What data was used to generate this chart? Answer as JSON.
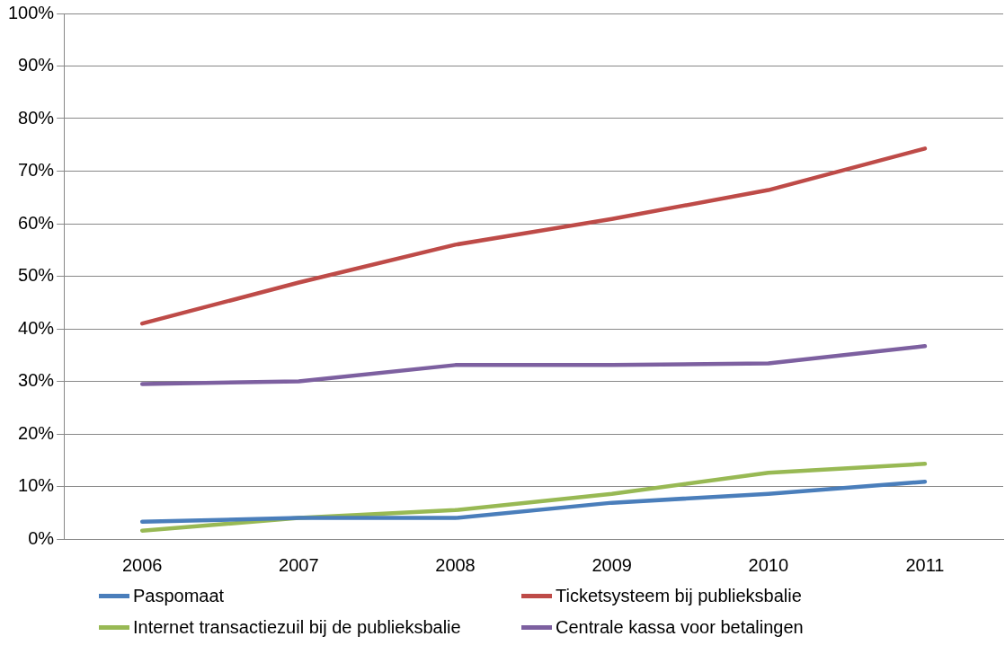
{
  "chart_data": {
    "type": "line",
    "categories": [
      "2006",
      "2007",
      "2008",
      "2009",
      "2010",
      "2011"
    ],
    "series": [
      {
        "name": "Paspomaat",
        "color": "#4a7ebb",
        "values": [
          3.3,
          4,
          4,
          6.9,
          8.6,
          10.9
        ]
      },
      {
        "name": "Ticketsysteem bij publieksbalie",
        "color": "#be4b48",
        "values": [
          41,
          48.8,
          56,
          60.9,
          66.4,
          74.3
        ]
      },
      {
        "name": "Internet transactiezuil bij de publieksbalie",
        "color": "#98b954",
        "values": [
          1.6,
          4,
          5.5,
          8.6,
          12.6,
          14.3
        ]
      },
      {
        "name": "Centrale kassa voor betalingen",
        "color": "#7d60a0",
        "values": [
          29.5,
          30,
          33.1,
          33.1,
          33.4,
          36.7
        ]
      }
    ],
    "ylim": [
      0,
      100
    ],
    "yticks": [
      {
        "value": 0,
        "label": "0%"
      },
      {
        "value": 10,
        "label": "10%"
      },
      {
        "value": 20,
        "label": "20%"
      },
      {
        "value": 30,
        "label": "30%"
      },
      {
        "value": 40,
        "label": "40%"
      },
      {
        "value": 50,
        "label": "50%"
      },
      {
        "value": 60,
        "label": "60%"
      },
      {
        "value": 70,
        "label": "70%"
      },
      {
        "value": 80,
        "label": "80%"
      },
      {
        "value": 90,
        "label": "90%"
      },
      {
        "value": 100,
        "label": "100%"
      }
    ],
    "grid": "y",
    "legend": "bottom",
    "marker": "none",
    "line_style": "solid"
  }
}
